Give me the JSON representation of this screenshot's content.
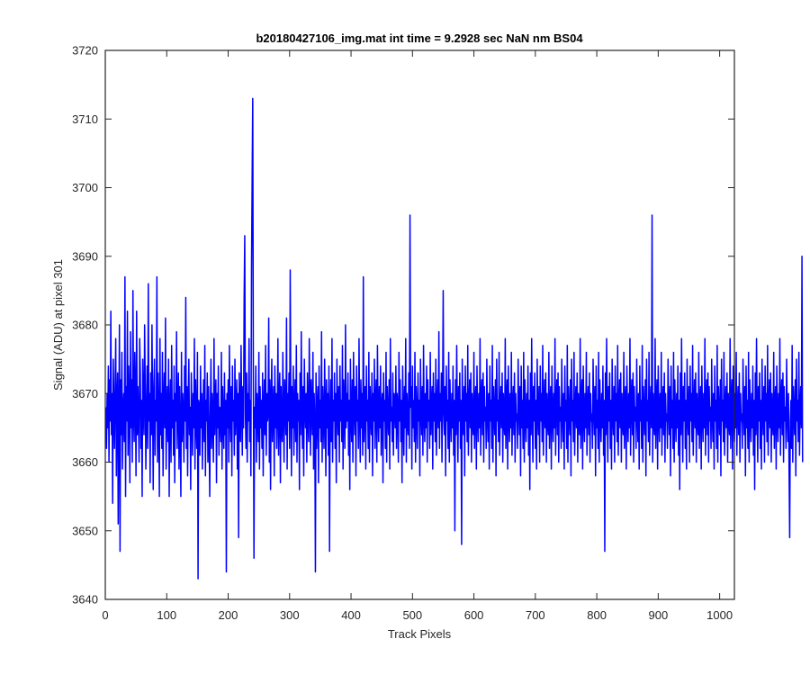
{
  "chart_data": {
    "type": "line",
    "title": "b20180427106_img.mat int time = 9.2928 sec  NaN nm BS04",
    "xlabel": "Track Pixels",
    "ylabel": "Signal (ADU) at pixel 301",
    "xlim": [
      0,
      1024
    ],
    "ylim": [
      3640,
      3720
    ],
    "xticks": [
      0,
      100,
      200,
      300,
      400,
      500,
      600,
      700,
      800,
      900,
      1000
    ],
    "yticks": [
      3640,
      3650,
      3660,
      3670,
      3680,
      3690,
      3700,
      3710,
      3720
    ],
    "grid": false,
    "line_color": "#0000ff",
    "series": [
      {
        "x_start": 1,
        "x_step": 1,
        "values": [
          3668,
          3662,
          3670,
          3665,
          3674,
          3660,
          3672,
          3666,
          3682,
          3664,
          3670,
          3654,
          3675,
          3668,
          3662,
          3671,
          3678,
          3658,
          3669,
          3673,
          3651,
          3666,
          3680,
          3647,
          3672,
          3664,
          3676,
          3659,
          3668,
          3670,
          3663,
          3687,
          3655,
          3671,
          3666,
          3682,
          3661,
          3674,
          3669,
          3657,
          3679,
          3665,
          3672,
          3660,
          3685,
          3667,
          3663,
          3676,
          3670,
          3658,
          3682,
          3664,
          3671,
          3666,
          3660,
          3678,
          3673,
          3662,
          3669,
          3655,
          3675,
          3668,
          3664,
          3680,
          3671,
          3659,
          3667,
          3674,
          3662,
          3686,
          3666,
          3670,
          3657,
          3673,
          3664,
          3680,
          3668,
          3656,
          3671,
          3675,
          3661,
          3669,
          3666,
          3687,
          3660,
          3673,
          3667,
          3655,
          3678,
          3664,
          3670,
          3662,
          3676,
          3658,
          3669,
          3673,
          3665,
          3681,
          3659,
          3667,
          3671,
          3663,
          3675,
          3655,
          3668,
          3672,
          3660,
          3677,
          3665,
          3669,
          3661,
          3674,
          3657,
          3670,
          3666,
          3679,
          3662,
          3668,
          3673,
          3659,
          3671,
          3665,
          3655,
          3676,
          3663,
          3670,
          3667,
          3660,
          3674,
          3666,
          3684,
          3662,
          3671,
          3658,
          3669,
          3675,
          3664,
          3668,
          3656,
          3673,
          3667,
          3661,
          3670,
          3665,
          3678,
          3659,
          3672,
          3666,
          3662,
          3676,
          3643,
          3669,
          3668,
          3661,
          3674,
          3665,
          3670,
          3659,
          3667,
          3672,
          3663,
          3677,
          3658,
          3669,
          3666,
          3673,
          3660,
          3671,
          3664,
          3655,
          3668,
          3675,
          3662,
          3670,
          3666,
          3660,
          3678,
          3664,
          3669,
          3672,
          3657,
          3670,
          3665,
          3674,
          3661,
          3668,
          3667,
          3663,
          3676,
          3659,
          3671,
          3666,
          3662,
          3673,
          3664,
          3669,
          3644,
          3670,
          3665,
          3672,
          3660,
          3677,
          3667,
          3663,
          3671,
          3658,
          3674,
          3666,
          3669,
          3661,
          3675,
          3664,
          3668,
          3672,
          3659,
          3670,
          3649,
          3673,
          3666,
          3663,
          3677,
          3668,
          3661,
          3671,
          3665,
          3684,
          3693,
          3667,
          3662,
          3673,
          3660,
          3670,
          3666,
          3678,
          3663,
          3669,
          3658,
          3688,
          3701,
          3713,
          3672,
          3646,
          3668,
          3665,
          3674,
          3660,
          3670,
          3667,
          3663,
          3676,
          3659,
          3671,
          3665,
          3669,
          3662,
          3673,
          3658,
          3668,
          3672,
          3664,
          3677,
          3661,
          3670,
          3666,
          3667,
          3681,
          3660,
          3672,
          3656,
          3669,
          3675,
          3663,
          3668,
          3671,
          3658,
          3674,
          3665,
          3670,
          3662,
          3667,
          3678,
          3661,
          3669,
          3673,
          3657,
          3671,
          3665,
          3663,
          3676,
          3667,
          3660,
          3672,
          3668,
          3664,
          3681,
          3659,
          3670,
          3666,
          3673,
          3662,
          3688,
          3669,
          3658,
          3671,
          3665,
          3674,
          3661,
          3668,
          3672,
          3663,
          3677,
          3660,
          3670,
          3666,
          3669,
          3656,
          3673,
          3664,
          3679,
          3667,
          3662,
          3671,
          3658,
          3675,
          3668,
          3665,
          3670,
          3660,
          3673,
          3666,
          3663,
          3678,
          3669,
          3661,
          3672,
          3667,
          3664,
          3676,
          3659,
          3670,
          3666,
          3644,
          3673,
          3662,
          3668,
          3671,
          3657,
          3674,
          3665,
          3669,
          3663,
          3679,
          3660,
          3671,
          3667,
          3662,
          3675,
          3668,
          3658,
          3672,
          3665,
          3670,
          3661,
          3674,
          3647,
          3667,
          3672,
          3663,
          3678,
          3660,
          3669,
          3666,
          3673,
          3662,
          3670,
          3657,
          3675,
          3668,
          3664,
          3671,
          3660,
          3674,
          3666,
          3669,
          3663,
          3677,
          3659,
          3672,
          3668,
          3662,
          3680,
          3665,
          3670,
          3666,
          3673,
          3661,
          3669,
          3656,
          3675,
          3667,
          3663,
          3672,
          3660,
          3676,
          3668,
          3664,
          3671,
          3658,
          3674,
          3666,
          3669,
          3662,
          3678,
          3667,
          3660,
          3672,
          3665,
          3670,
          3661,
          3687,
          3663,
          3668,
          3671,
          3659,
          3674,
          3666,
          3669,
          3662,
          3676,
          3660,
          3671,
          3667,
          3664,
          3673,
          3658,
          3670,
          3666,
          3675,
          3662,
          3669,
          3672,
          3660,
          3677,
          3667,
          3663,
          3671,
          3665,
          3674,
          3661,
          3668,
          3670,
          3657,
          3673,
          3666,
          3669,
          3662,
          3676,
          3660,
          3671,
          3667,
          3664,
          3672,
          3659,
          3678,
          3666,
          3668,
          3663,
          3673,
          3661,
          3670,
          3669,
          3665,
          3674,
          3662,
          3670,
          3668,
          3660,
          3676,
          3666,
          3672,
          3663,
          3669,
          3657,
          3674,
          3667,
          3661,
          3671,
          3665,
          3678,
          3660,
          3670,
          3666,
          3664,
          3673,
          3662,
          3696,
          3668,
          3671,
          3659,
          3674,
          3665,
          3669,
          3663,
          3676,
          3660,
          3671,
          3667,
          3662,
          3673,
          3666,
          3669,
          3658,
          3675,
          3668,
          3664,
          3671,
          3661,
          3677,
          3667,
          3663,
          3670,
          3665,
          3674,
          3660,
          3672,
          3666,
          3669,
          3662,
          3676,
          3664,
          3668,
          3671,
          3659,
          3673,
          3666,
          3670,
          3663,
          3675,
          3661,
          3668,
          3672,
          3665,
          3679,
          3662,
          3670,
          3666,
          3673,
          3660,
          3669,
          3685,
          3667,
          3664,
          3671,
          3658,
          3674,
          3666,
          3669,
          3662,
          3676,
          3660,
          3672,
          3667,
          3663,
          3670,
          3665,
          3674,
          3661,
          3669,
          3650,
          3672,
          3664,
          3677,
          3667,
          3660,
          3671,
          3666,
          3673,
          3662,
          3669,
          3648,
          3675,
          3667,
          3664,
          3671,
          3658,
          3674,
          3666,
          3670,
          3663,
          3677,
          3661,
          3668,
          3672,
          3665,
          3673,
          3660,
          3670,
          3666,
          3664,
          3676,
          3662,
          3669,
          3671,
          3659,
          3674,
          3667,
          3663,
          3670,
          3665,
          3678,
          3661,
          3669,
          3672,
          3664,
          3673,
          3660,
          3671,
          3666,
          3668,
          3662,
          3675,
          3667,
          3663,
          3670,
          3659,
          3674,
          3666,
          3669,
          3662,
          3677,
          3660,
          3671,
          3667,
          3664,
          3672,
          3658,
          3675,
          3666,
          3669,
          3663,
          3676,
          3661,
          3668,
          3671,
          3665,
          3673,
          3660,
          3670,
          3666,
          3664,
          3678,
          3662,
          3669,
          3672,
          3659,
          3674,
          3667,
          3663,
          3670,
          3665,
          3676,
          3661,
          3668,
          3671,
          3664,
          3673,
          3660,
          3670,
          3666,
          3667,
          3662,
          3675,
          3668,
          3664,
          3671,
          3658,
          3674,
          3665,
          3669,
          3662,
          3676,
          3660,
          3672,
          3667,
          3663,
          3670,
          3665,
          3674,
          3661,
          3669,
          3656,
          3673,
          3664,
          3678,
          3667,
          3660,
          3671,
          3666,
          3673,
          3662,
          3669,
          3659,
          3675,
          3667,
          3664,
          3671,
          3660,
          3674,
          3666,
          3670,
          3663,
          3677,
          3661,
          3668,
          3672,
          3665,
          3673,
          3660,
          3670,
          3666,
          3664,
          3676,
          3662,
          3669,
          3671,
          3659,
          3674,
          3667,
          3663,
          3670,
          3665,
          3678,
          3661,
          3669,
          3672,
          3664,
          3673,
          3660,
          3671,
          3666,
          3668,
          3662,
          3675,
          3667,
          3663,
          3670,
          3659,
          3674,
          3666,
          3669,
          3662,
          3677,
          3660,
          3671,
          3667,
          3664,
          3672,
          3658,
          3675,
          3666,
          3669,
          3663,
          3676,
          3661,
          3668,
          3671,
          3665,
          3673,
          3660,
          3670,
          3666,
          3664,
          3678,
          3662,
          3669,
          3672,
          3659,
          3674,
          3667,
          3663,
          3670,
          3665,
          3676,
          3661,
          3668,
          3671,
          3664,
          3673,
          3660,
          3670,
          3666,
          3667,
          3662,
          3675,
          3668,
          3664,
          3671,
          3658,
          3674,
          3665,
          3669,
          3662,
          3676,
          3660,
          3672,
          3667,
          3663,
          3670,
          3665,
          3674,
          3661,
          3669,
          3647,
          3673,
          3664,
          3678,
          3667,
          3660,
          3671,
          3666,
          3673,
          3662,
          3669,
          3659,
          3675,
          3667,
          3664,
          3671,
          3660,
          3674,
          3666,
          3670,
          3663,
          3677,
          3661,
          3668,
          3672,
          3665,
          3673,
          3660,
          3670,
          3666,
          3664,
          3676,
          3662,
          3669,
          3671,
          3659,
          3674,
          3667,
          3663,
          3670,
          3665,
          3678,
          3661,
          3669,
          3672,
          3664,
          3673,
          3660,
          3671,
          3666,
          3668,
          3662,
          3675,
          3667,
          3663,
          3670,
          3659,
          3674,
          3666,
          3669,
          3662,
          3677,
          3660,
          3671,
          3667,
          3664,
          3672,
          3658,
          3675,
          3666,
          3669,
          3663,
          3676,
          3661,
          3668,
          3671,
          3665,
          3696,
          3660,
          3670,
          3666,
          3664,
          3678,
          3662,
          3669,
          3672,
          3659,
          3674,
          3667,
          3663,
          3670,
          3665,
          3676,
          3661,
          3668,
          3671,
          3664,
          3673,
          3660,
          3670,
          3666,
          3667,
          3662,
          3675,
          3668,
          3664,
          3671,
          3658,
          3674,
          3665,
          3669,
          3662,
          3676,
          3660,
          3672,
          3667,
          3663,
          3670,
          3665,
          3674,
          3661,
          3669,
          3656,
          3673,
          3664,
          3678,
          3667,
          3660,
          3671,
          3666,
          3673,
          3662,
          3669,
          3659,
          3675,
          3667,
          3664,
          3671,
          3660,
          3674,
          3666,
          3670,
          3663,
          3677,
          3661,
          3668,
          3672,
          3665,
          3673,
          3660,
          3670,
          3666,
          3664,
          3676,
          3662,
          3669,
          3671,
          3659,
          3674,
          3667,
          3663,
          3670,
          3665,
          3678,
          3661,
          3669,
          3672,
          3664,
          3673,
          3660,
          3671,
          3666,
          3668,
          3662,
          3675,
          3667,
          3663,
          3670,
          3659,
          3674,
          3666,
          3669,
          3662,
          3677,
          3660,
          3671,
          3667,
          3664,
          3672,
          3658,
          3675,
          3666,
          3669,
          3663,
          3676,
          3661,
          3668,
          3671,
          3665,
          3673,
          3660,
          3670,
          3666,
          3664,
          3678,
          3662,
          3669,
          3672,
          3659,
          3674,
          3667,
          3663,
          3670,
          3665,
          3676,
          3661,
          3668,
          3671,
          3664,
          3673,
          3660,
          3670,
          3666,
          3667,
          3662,
          3675,
          3668,
          3664,
          3671,
          3658,
          3674,
          3665,
          3669,
          3662,
          3676,
          3660,
          3672,
          3667,
          3663,
          3670,
          3665,
          3674,
          3661,
          3669,
          3656,
          3673,
          3664,
          3678,
          3667,
          3660,
          3671,
          3666,
          3673,
          3662,
          3669,
          3659,
          3675,
          3667,
          3664,
          3671,
          3660,
          3674,
          3666,
          3670,
          3663,
          3677,
          3661,
          3668,
          3672,
          3665,
          3673,
          3660,
          3670,
          3666,
          3664,
          3676,
          3662,
          3669,
          3671,
          3659,
          3674,
          3667,
          3663,
          3670,
          3665,
          3678,
          3661,
          3669,
          3672,
          3664,
          3673,
          3660,
          3671,
          3666,
          3668,
          3662,
          3675,
          3667,
          3663,
          3670,
          3659,
          3649,
          3666,
          3669,
          3662,
          3677,
          3660,
          3671,
          3667,
          3664,
          3672,
          3658,
          3675,
          3666,
          3669,
          3663,
          3676,
          3661,
          3668,
          3671,
          3665,
          3690,
          3660
        ]
      }
    ]
  }
}
